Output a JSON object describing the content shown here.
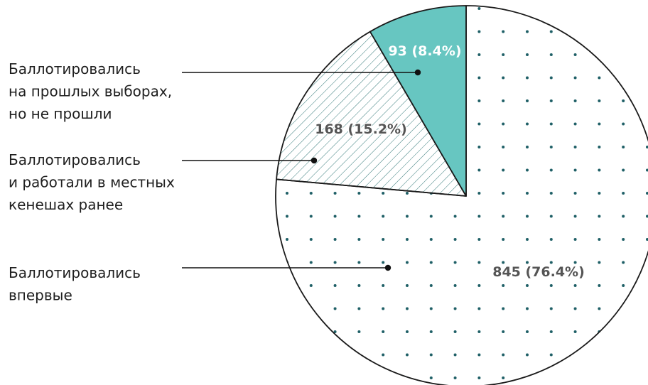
{
  "chart_data": {
    "type": "pie",
    "title": "",
    "slices": [
      {
        "label_lines": [
          "Баллотировались",
          "впервые"
        ],
        "value": 845,
        "percent": 76.4,
        "data_label": "845 (76.4%)",
        "fill": "dots",
        "color": "#1e5f66"
      },
      {
        "label_lines": [
          "Баллотировались",
          "и работали в местных",
          "кенешах ранее"
        ],
        "value": 168,
        "percent": 15.2,
        "data_label": "168 (15.2%)",
        "fill": "hatch",
        "color": "#1e6b6b"
      },
      {
        "label_lines": [
          "Баллотировались",
          "на прошлых выборах,",
          "но не прошли"
        ],
        "value": 93,
        "percent": 8.4,
        "data_label": "93 (8.4%)",
        "fill": "solid",
        "color": "#67c6c1"
      }
    ],
    "start": "12 o'clock",
    "direction": "clockwise",
    "label_text_color": "#555555",
    "label_text_color_on_solid": "#ffffff",
    "outline_color": "#1a1a1a"
  }
}
